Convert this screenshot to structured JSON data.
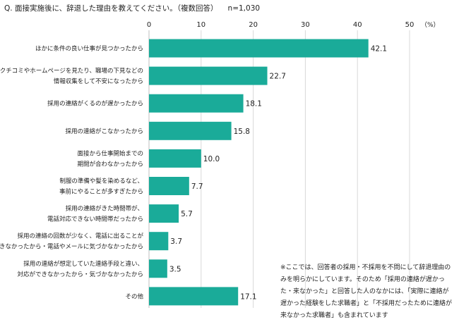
{
  "question": "Q. 面接実施後に、辞退した理由を教えてください。（複数回答）",
  "sample": "n=1,030",
  "chart_data": {
    "type": "bar",
    "orientation": "horizontal",
    "unit": "（%）",
    "xlim": [
      0,
      50
    ],
    "ticks": [
      0,
      10,
      20,
      30,
      40,
      50
    ],
    "bar_color": "#1aab99",
    "categories": [
      [
        "ほかに条件の良い仕事が見つかったから"
      ],
      [
        "クチコミやホームページを見たり、職場の下見などの",
        "情報収集をして不安になったから"
      ],
      [
        "採用の連絡がくるのが遅かったから"
      ],
      [
        "採用の連絡がこなかったから"
      ],
      [
        "面接から仕事開始までの",
        "期間が合わなかったから"
      ],
      [
        "制服の準備や髪を染めるなど、",
        "事前にやることが多すぎたから"
      ],
      [
        "採用の連絡がきた時間帯が、",
        "電話対応できない時間帯だったから"
      ],
      [
        "採用の連絡の回数が少なく、電話に出ることが",
        "できなかったから・電話やメールに気づかなかったから"
      ],
      [
        "採用の連絡が想定していた連絡手段と違い、",
        "対応ができなかったから・気づかなかったから"
      ],
      [
        "その他"
      ]
    ],
    "values": [
      42.1,
      22.7,
      18.1,
      15.8,
      10.0,
      7.7,
      5.7,
      3.7,
      3.5,
      17.1
    ],
    "value_labels": [
      "42.1",
      "22.7",
      "18.1",
      "15.8",
      "10.0",
      "7.7",
      "5.7",
      "3.7",
      "3.5",
      "17.1"
    ]
  },
  "note": "※ここでは、回答者の採用・不採用を不問にして辞退理由のみを明らかにしています。そのため「採用の連絡が遅かった・来なかった」と回答した人のなかには、「実際に連絡が遅かった経験をした求職者」と「不採用だったために連絡が来なかった求職者」も含まれています"
}
